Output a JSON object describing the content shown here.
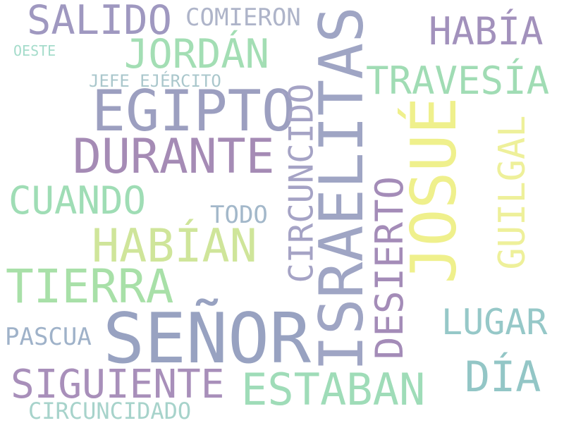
{
  "words": [
    {
      "text": "SEÑOR",
      "color": "#98a2c1"
    },
    {
      "text": "ISRAELITAS",
      "color": "#9fa5c4"
    },
    {
      "text": "JOSUÉ",
      "color": "#eff08c"
    },
    {
      "text": "EGIPTO",
      "color": "#9c9fc0"
    },
    {
      "text": "DURANTE",
      "color": "#a58bb5"
    },
    {
      "text": "TIERRA",
      "color": "#a8e0a8"
    },
    {
      "text": "HABÍAN",
      "color": "#cfe59a"
    },
    {
      "text": "CIRCUNCIDÓ",
      "color": "#a5a3c5"
    },
    {
      "text": "ESTABAN",
      "color": "#9fdcb8"
    },
    {
      "text": "SIGUIENTE",
      "color": "#a88fba"
    },
    {
      "text": "SALIDO",
      "color": "#9f98c0"
    },
    {
      "text": "JORDÁN",
      "color": "#a3deb4"
    },
    {
      "text": "HABÍA",
      "color": "#a291bc"
    },
    {
      "text": "TRAVESÍA",
      "color": "#a0dcb4"
    },
    {
      "text": "CUANDO",
      "color": "#9fddb5"
    },
    {
      "text": "DESIERTO",
      "color": "#a48cb8"
    },
    {
      "text": "GUILGAL",
      "color": "#eef09a"
    },
    {
      "text": "DÍA",
      "color": "#93c6c6"
    },
    {
      "text": "LUGAR",
      "color": "#96c8c8"
    },
    {
      "text": "COMIERON",
      "color": "#aeb4c9"
    },
    {
      "text": "PASCUA",
      "color": "#9fb2c9"
    },
    {
      "text": "CIRCUNCIDADO",
      "color": "#a7d3cb"
    },
    {
      "text": "TODO",
      "color": "#a3b8ca"
    },
    {
      "text": "JEFE EJÉRCITO",
      "color": "#aac7cc"
    },
    {
      "text": "OESTE",
      "color": "#a5dccb"
    }
  ]
}
